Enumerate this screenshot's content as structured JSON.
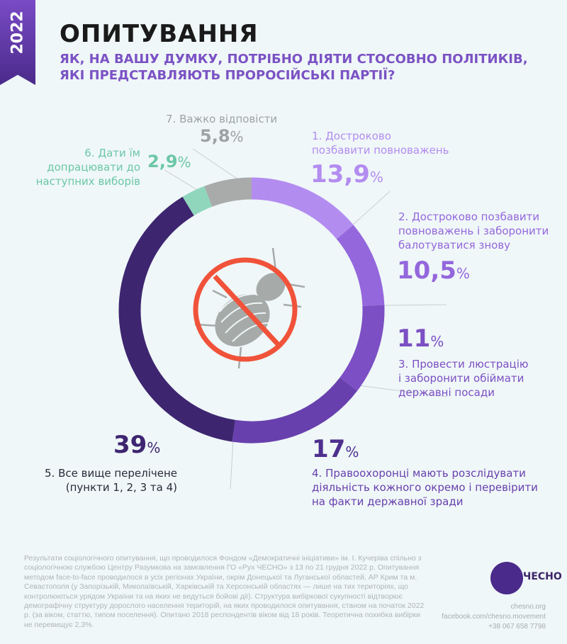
{
  "year": "2022",
  "title": "ОПИТУВАННЯ",
  "subtitle_lines": [
    "ЯК, НА ВАШУ ДУМКУ, ПОТРІБНО ДІЯТИ СТОСОВНО ПОЛІТИКІВ,",
    "ЯКІ ПРЕДСТАВЛЯЮТЬ ПРОРОСІЙСЬКІ ПАРТІЇ?"
  ],
  "chart_data": {
    "type": "pie",
    "variant": "donut",
    "start": "top-clockwise",
    "categories": [
      "1. Достроково позбавити повноважень",
      "2. Достроково позбавити повноважень і заборонити балотуватися знову",
      "3. Провести люстрацію і заборонити обіймати державні посади",
      "4. Правоохоронці мають розслідувати діяльність кожного окремо і перевірити на факти державної зради",
      "5. Все вище перелічене (пункти 1, 2, 3 та 4)",
      "6. Дати їм допрацювати до наступних виборів",
      "7. Важко відповісти"
    ],
    "values": [
      13.9,
      10.5,
      11,
      17,
      39,
      2.9,
      5.8
    ],
    "value_labels": [
      "13,9",
      "10,5",
      "11",
      "17",
      "39",
      "2,9",
      "5,8"
    ],
    "unit": "%",
    "colors": [
      "#b38cf0",
      "#9467dc",
      "#7c4fc4",
      "#6840ad",
      "#3e2570",
      "#8fd6bc",
      "#a9abab"
    ],
    "label_lines": [
      [
        "1. Достроково",
        "позбавити повноважень"
      ],
      [
        "2. Достроково позбавити",
        "повноважень і заборонити",
        "балотуватися знову"
      ],
      [
        "3. Провести люстрацію",
        "і заборонити обіймати",
        "державні посади"
      ],
      [
        "4. Правоохоронці мають розслідувати",
        "діяльність кожного окремо і перевірити",
        "на факти державної зради"
      ],
      [
        "5. Все вище перелічене",
        "(пункти 1, 2, 3 та 4)"
      ],
      [
        "6. Дати їм",
        "допрацювати до",
        "наступних виборів"
      ],
      [
        "7.  Важко відповісти"
      ]
    ]
  },
  "center_icon": "no-beetle-icon",
  "footnote": "Результати соціологічного опитування, що проводилося Фондом «Демократичні ініціативи» ім. І. Кучеріва спільно з соціологічною службою Центру Разумкова на замовлення ГО «Рух ЧЕСНО» з 13 по 21 грудня 2022 р. Опитування методом face-to-face проводилося в усіх регіонах України, окрім Донецької та Луганської областей, АР Крим та м. Севастополя (у Запорізькій, Миколаївській, Харківській та Херсонській областях — лише на тих територіях, що контролюються урядом України та на яких не ведуться бойові дії). Структура вибіркової сукупності відтворює демографічну структуру дорослого населення територій, на яких проводилося опитування, станом на початок 2022 р. (за віком, статтю, типом поселення). Опитано 2018 респондентів віком від 18 років. Теоретична похибка вибірки не перевищує 2,3%.",
  "brand": {
    "name": "ЧЕСНО",
    "site": "chesno.org",
    "facebook": "facebook.com/chesno.movement",
    "phone": "+38 067 658 7798"
  }
}
